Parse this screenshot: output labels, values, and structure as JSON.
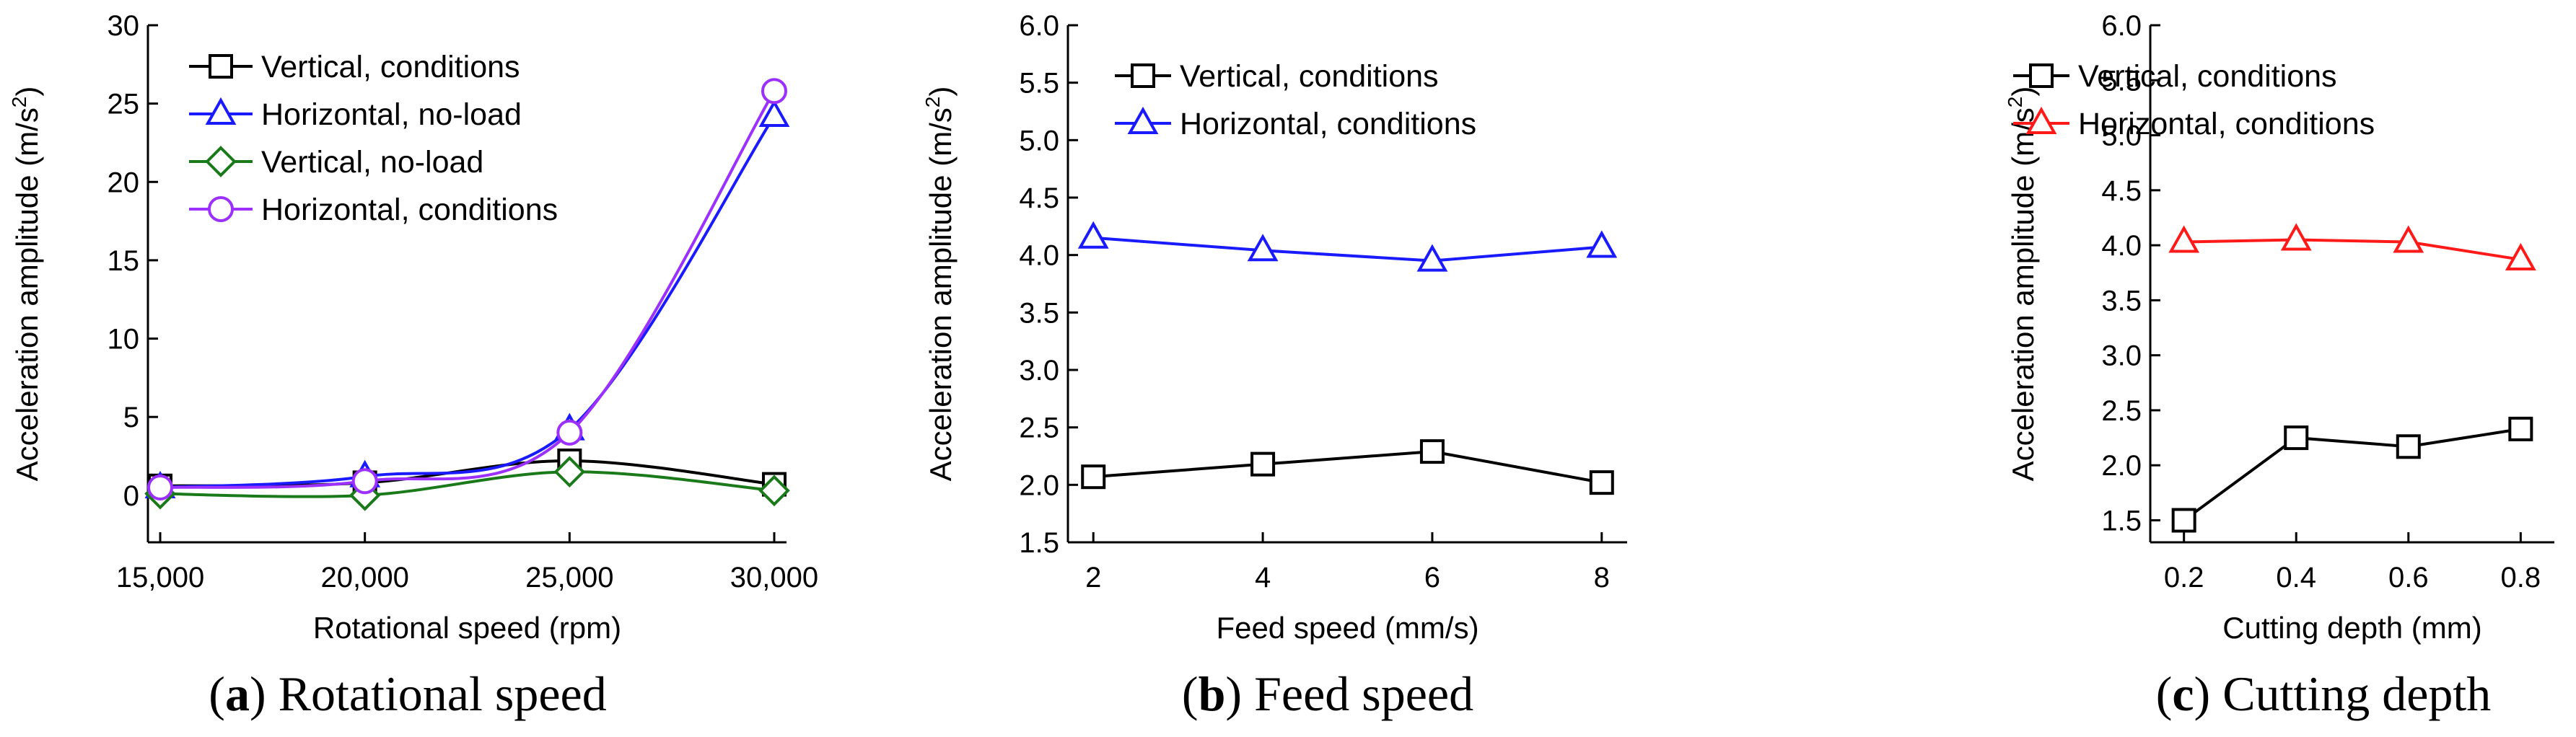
{
  "chart_data": [
    {
      "type": "line",
      "smooth": true,
      "caption": {
        "letter": "a",
        "text": "Rotational speed"
      },
      "xlabel": "Rotational speed (rpm)",
      "ylabel_main": "Acceleration amplitude (m/s",
      "ylabel_sup": "2",
      "ylabel_close": ")",
      "x": [
        15000,
        20000,
        25000,
        30000
      ],
      "xlim": [
        14700,
        30300
      ],
      "ylim": [
        -3,
        30
      ],
      "xticks": [
        15000,
        20000,
        25000,
        30000
      ],
      "xtick_labels": [
        "15,000",
        "20,000",
        "25,000",
        "30,000"
      ],
      "yticks": [
        0,
        5,
        10,
        15,
        20,
        25,
        30
      ],
      "ytick_labels": [
        "0",
        "5",
        "10",
        "15",
        "20",
        "25",
        "30"
      ],
      "legend_position": "top-left",
      "series": [
        {
          "name": "Vertical, conditions",
          "color": "#000000",
          "marker": "square",
          "values": [
            0.6,
            0.8,
            2.2,
            0.7
          ]
        },
        {
          "name": "Horizontal, no-load",
          "color": "#1a1aff",
          "marker": "triangle",
          "values": [
            0.5,
            1.2,
            4.2,
            24.2
          ]
        },
        {
          "name": "Vertical, no-load",
          "color": "#1a7a1a",
          "marker": "diamond",
          "values": [
            0.1,
            0.0,
            1.5,
            0.3
          ]
        },
        {
          "name": "Horizontal, conditions",
          "color": "#9b30ff",
          "marker": "circle",
          "values": [
            0.5,
            0.9,
            4.0,
            25.8
          ]
        }
      ]
    },
    {
      "type": "line",
      "smooth": false,
      "caption": {
        "letter": "b",
        "text": "Feed speed"
      },
      "xlabel": "Feed speed (mm/s)",
      "ylabel_main": "Acceleration amplitude (m/s",
      "ylabel_sup": "2",
      "ylabel_close": ")",
      "x": [
        2,
        4,
        6,
        8
      ],
      "xlim": [
        1.7,
        8.3
      ],
      "ylim": [
        1.5,
        6.0
      ],
      "xticks": [
        2,
        4,
        6,
        8
      ],
      "xtick_labels": [
        "2",
        "4",
        "6",
        "8"
      ],
      "yticks": [
        1.5,
        2.0,
        2.5,
        3.0,
        3.5,
        4.0,
        4.5,
        5.0,
        5.5,
        6.0
      ],
      "ytick_labels": [
        "1.5",
        "2.0",
        "2.5",
        "3.0",
        "3.5",
        "4.0",
        "4.5",
        "5.0",
        "5.5",
        "6.0"
      ],
      "legend_position": "top-left",
      "series": [
        {
          "name": "Vertical, conditions",
          "color": "#000000",
          "marker": "square",
          "values": [
            2.07,
            2.18,
            2.29,
            2.02
          ]
        },
        {
          "name": "Horizontal, conditions",
          "color": "#1a1aff",
          "marker": "triangle",
          "values": [
            4.15,
            4.04,
            3.95,
            4.07
          ]
        }
      ]
    },
    {
      "type": "line",
      "smooth": false,
      "caption": {
        "letter": "c",
        "text": "Cutting depth"
      },
      "xlabel": "Cutting depth (mm)",
      "ylabel_main": "Acceleration amplitude (m/s",
      "ylabel_sup": "2",
      "ylabel_close": ")",
      "x": [
        0.2,
        0.4,
        0.6,
        0.8
      ],
      "xlim": [
        0.14,
        0.86
      ],
      "ylim": [
        1.3,
        6.0
      ],
      "xticks": [
        0.2,
        0.4,
        0.6,
        0.8
      ],
      "xtick_labels": [
        "0.2",
        "0.4",
        "0.6",
        "0.8"
      ],
      "yticks": [
        1.5,
        2.0,
        2.5,
        3.0,
        3.5,
        4.0,
        4.5,
        5.0,
        5.5,
        6.0
      ],
      "ytick_labels": [
        "1.5",
        "2.0",
        "2.5",
        "3.0",
        "3.5",
        "4.0",
        "4.5",
        "5.0",
        "5.5",
        "6.0"
      ],
      "legend_position": "top-left",
      "series": [
        {
          "name": "Vertical, conditions",
          "color": "#000000",
          "marker": "square",
          "values": [
            1.5,
            2.25,
            2.17,
            2.33
          ]
        },
        {
          "name": "Horizontal, conditions",
          "color": "#ff1a1a",
          "marker": "triangle",
          "values": [
            4.03,
            4.05,
            4.03,
            3.87
          ]
        }
      ]
    }
  ]
}
